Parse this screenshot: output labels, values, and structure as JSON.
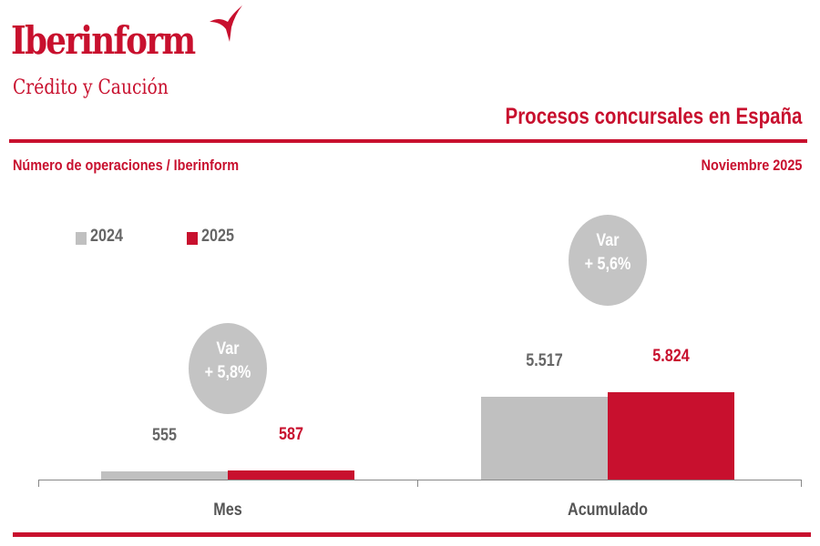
{
  "header": {
    "brand": "Iberinform",
    "brand_sub": "Crédito y Caución",
    "title": "Procesos concursales en España",
    "subtitle": "Número de operaciones / Iberinform",
    "date": "Noviembre 2025"
  },
  "colors": {
    "accent": "#c8102e",
    "gray": "#c0c0c0",
    "text_gray": "#666666"
  },
  "chart_data": {
    "type": "bar",
    "title": "Procesos concursales en España",
    "categories": [
      "Mes",
      "Acumulado"
    ],
    "series": [
      {
        "name": "2024",
        "values": [
          555,
          5517
        ],
        "labels": [
          "555",
          "5.517"
        ]
      },
      {
        "name": "2025",
        "values": [
          587,
          5824
        ],
        "labels": [
          "587",
          "5.824"
        ]
      }
    ],
    "annotations": [
      {
        "category": "Mes",
        "line1": "Var",
        "line2": "+ 5,8%"
      },
      {
        "category": "Acumulado",
        "line1": "Var",
        "line2": "+ 5,6%"
      }
    ],
    "legend": "top-left",
    "ylim": [
      0,
      5824
    ],
    "grid": false
  }
}
